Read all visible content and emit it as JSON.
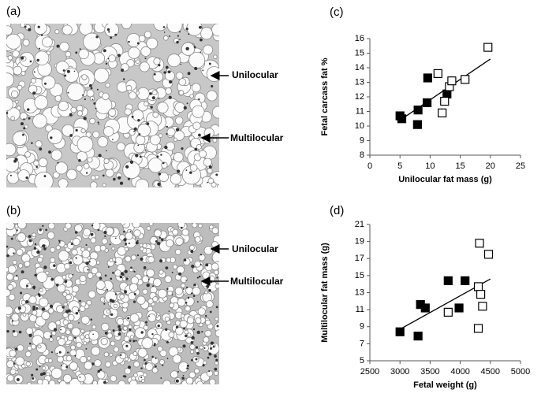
{
  "panels": [
    {
      "label": "(a)",
      "annotations": [
        "Unilocular",
        "Multilocular"
      ]
    },
    {
      "label": "(b)",
      "annotations": [
        "Unilocular",
        "Multilocular"
      ]
    }
  ],
  "chart_data": [
    {
      "type": "scatter",
      "panel_label": "(c)",
      "x_label": "Unilocular fat mass (g)",
      "y_label": "Fetal carcass fat %",
      "xlim": [
        0,
        25
      ],
      "xticks": [
        0,
        5,
        10,
        15,
        20,
        25
      ],
      "ylim": [
        8,
        16
      ],
      "yticks": [
        8,
        9,
        10,
        11,
        12,
        13,
        14,
        15,
        16
      ],
      "series": [
        {
          "color": "#000000",
          "fill": "#000000",
          "x": [
            5,
            5.3,
            7.9,
            8,
            9.5,
            9.6,
            12.8
          ],
          "values": [
            10.7,
            10.5,
            10.1,
            11.1,
            11.6,
            13.3,
            12.2
          ]
        },
        {
          "color": "#000000",
          "fill": "none",
          "x": [
            11.3,
            12,
            12.4,
            13.2,
            13.6,
            15.8,
            19.6
          ],
          "values": [
            13.6,
            10.9,
            11.7,
            12.7,
            13.1,
            13.2,
            15.4
          ]
        }
      ],
      "trend": {
        "x": [
          5,
          20
        ],
        "values": [
          10.4,
          14.6
        ]
      }
    },
    {
      "type": "scatter",
      "panel_label": "(d)",
      "x_label": "Fetal weight (g)",
      "y_label": "Multilocular fat mass (g)",
      "xlim": [
        2500,
        5000
      ],
      "xticks": [
        2500,
        3000,
        3500,
        4000,
        4500,
        5000
      ],
      "ylim": [
        5,
        21
      ],
      "yticks": [
        5,
        7,
        9,
        11,
        13,
        15,
        17,
        19,
        21
      ],
      "series": [
        {
          "color": "#000000",
          "fill": "#000000",
          "x": [
            3000,
            3300,
            3340,
            3420,
            3800,
            3980,
            4080
          ],
          "values": [
            8.4,
            7.9,
            11.6,
            11.2,
            14.4,
            11.2,
            14.4
          ]
        },
        {
          "color": "#000000",
          "fill": "none",
          "x": [
            3800,
            4300,
            4300,
            4320,
            4340,
            4370,
            4470
          ],
          "values": [
            10.7,
            8.8,
            13.7,
            18.8,
            12.8,
            11.4,
            17.5
          ]
        }
      ],
      "trend": {
        "x": [
          3000,
          4500
        ],
        "values": [
          8.7,
          14.6
        ]
      }
    }
  ]
}
